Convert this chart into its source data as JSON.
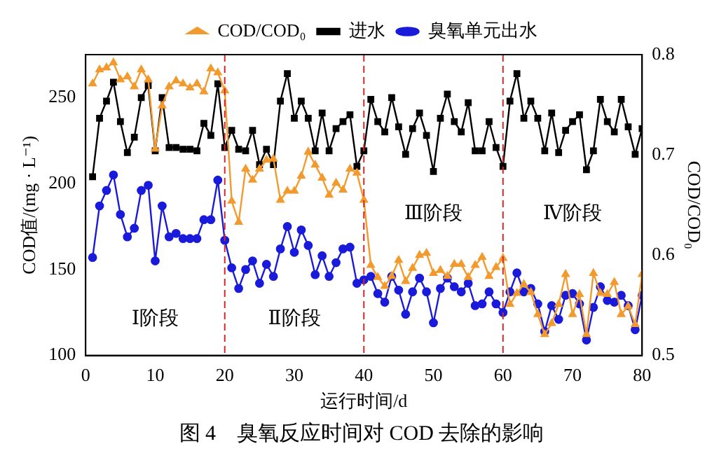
{
  "chart_data": {
    "type": "line",
    "title": "图 4　臭氧反应时间对 COD 去除的影响",
    "xlabel": "运行时间/d",
    "ylabel": "COD值/(mg · L⁻¹)",
    "y2label": "COD/COD₀",
    "x": [
      1,
      2,
      3,
      4,
      5,
      6,
      7,
      8,
      9,
      10,
      11,
      12,
      13,
      14,
      15,
      16,
      17,
      18,
      19,
      20,
      21,
      22,
      23,
      24,
      25,
      26,
      27,
      28,
      29,
      30,
      31,
      32,
      33,
      34,
      35,
      36,
      37,
      38,
      39,
      40,
      41,
      42,
      43,
      44,
      45,
      46,
      47,
      48,
      49,
      50,
      51,
      52,
      53,
      54,
      55,
      56,
      57,
      58,
      59,
      60,
      61,
      62,
      63,
      64,
      65,
      66,
      67,
      68,
      69,
      70,
      71,
      72,
      73,
      74,
      75,
      76,
      77,
      78,
      79,
      80
    ],
    "series": [
      {
        "name": "COD/COD₀",
        "color": "#f39a2e",
        "axis": "y2",
        "marker": "triangle",
        "values": [
          0.771,
          0.785,
          0.787,
          0.792,
          0.775,
          0.778,
          0.768,
          0.785,
          0.775,
          0.706,
          0.749,
          0.768,
          0.774,
          0.771,
          0.767,
          0.771,
          0.763,
          0.786,
          0.782,
          0.764,
          0.654,
          0.633,
          0.686,
          0.675,
          0.686,
          0.695,
          0.696,
          0.655,
          0.664,
          0.664,
          0.679,
          0.703,
          0.69,
          0.677,
          0.66,
          0.672,
          0.665,
          0.686,
          0.682,
          0.655,
          0.59,
          0.578,
          0.569,
          0.579,
          0.595,
          0.574,
          0.587,
          0.6,
          0.602,
          0.582,
          0.585,
          0.579,
          0.591,
          0.591,
          0.578,
          0.59,
          0.598,
          0.579,
          0.588,
          0.597,
          0.551,
          0.562,
          0.571,
          0.563,
          0.541,
          0.521,
          0.532,
          0.551,
          0.581,
          0.541,
          0.561,
          0.521,
          0.582,
          0.562,
          0.561,
          0.573,
          0.541,
          0.549,
          0.531,
          0.581
        ]
      },
      {
        "name": "进水",
        "color": "#000000",
        "marker": "square",
        "values": [
          204,
          238,
          248,
          259,
          236,
          218,
          227,
          250,
          257,
          219,
          250,
          221,
          221,
          220,
          220,
          219,
          235,
          228,
          258,
          221,
          231,
          220,
          219,
          231,
          211,
          220,
          211,
          248,
          264,
          238,
          248,
          238,
          219,
          241,
          219,
          232,
          236,
          240,
          210,
          219,
          249,
          236,
          230,
          250,
          233,
          217,
          232,
          241,
          228,
          207,
          238,
          252,
          236,
          230,
          247,
          219,
          219,
          236,
          221,
          210,
          248,
          264,
          238,
          248,
          238,
          219,
          241,
          218,
          231,
          236,
          240,
          208,
          219,
          249,
          236,
          230,
          249,
          233,
          217,
          232
        ]
      },
      {
        "name": "臭氧单元出水",
        "color": "#1a1adb",
        "marker": "circle",
        "values": [
          157,
          187,
          196,
          205,
          182,
          169,
          174,
          196,
          199,
          155,
          187,
          169,
          171,
          168,
          168,
          168,
          179,
          179,
          202,
          167,
          151,
          139,
          150,
          155,
          142,
          153,
          146,
          162,
          175,
          160,
          173,
          164,
          147,
          158,
          146,
          154,
          162,
          163,
          142,
          144,
          146,
          136,
          131,
          146,
          138,
          124,
          137,
          145,
          137,
          119,
          139,
          145,
          140,
          137,
          142,
          129,
          130,
          137,
          130,
          125,
          137,
          148,
          137,
          139,
          130,
          114,
          129,
          121,
          135,
          136,
          130,
          109,
          128,
          140,
          132,
          131,
          135,
          129,
          115,
          135
        ]
      }
    ],
    "xlim": [
      0,
      80
    ],
    "xticks": [
      0,
      10,
      20,
      30,
      40,
      50,
      60,
      70,
      80
    ],
    "ylim": [
      100,
      275
    ],
    "yticks": [
      100,
      150,
      200,
      250
    ],
    "y2lim": [
      0.5,
      0.8
    ],
    "y2ticks": [
      0.5,
      0.6,
      0.7,
      0.8
    ],
    "ref_lines": [
      {
        "axis": "x",
        "value": 20,
        "color": "#d62728",
        "line_style": "dashed"
      },
      {
        "axis": "x",
        "value": 40,
        "color": "#d62728",
        "line_style": "dashed"
      },
      {
        "axis": "x",
        "value": 60,
        "color": "#d62728",
        "line_style": "dashed"
      }
    ],
    "annotations": [
      "Ⅰ阶段",
      "Ⅱ阶段",
      "Ⅲ阶段",
      "Ⅳ阶段"
    ],
    "legend": "top",
    "grid": false
  }
}
